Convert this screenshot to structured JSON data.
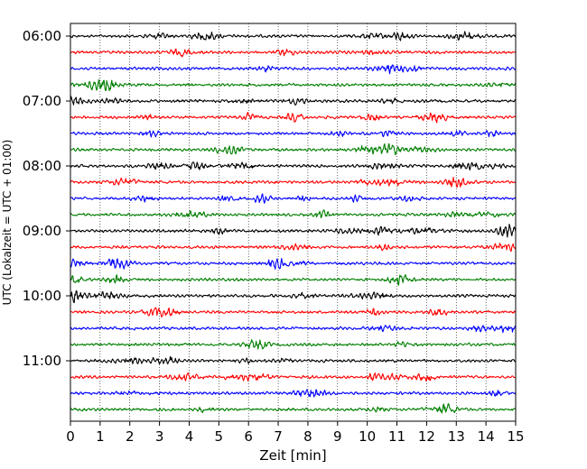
{
  "chart_data": {
    "type": "line",
    "title": "",
    "xlabel": "Zeit  [min]",
    "ylabel": "UTC (Lokalzeit = UTC + 01:00)",
    "xlim": [
      0,
      15
    ],
    "x_ticks": [
      0,
      1,
      2,
      3,
      4,
      5,
      6,
      7,
      8,
      9,
      10,
      11,
      12,
      13,
      14,
      15
    ],
    "y_tick_labels": [
      "06:00",
      "07:00",
      "08:00",
      "09:00",
      "10:00",
      "11:00"
    ],
    "trace_interval_minutes": 15,
    "first_trace_time": "06:00",
    "trace_count": 24,
    "trace_colors": [
      "#000000",
      "#ff0000",
      "#0000ff",
      "#007f00"
    ],
    "grid": "vertical dotted lines at each minute",
    "signal": "seismogram-style noise traces, one per 15-minute interval"
  }
}
